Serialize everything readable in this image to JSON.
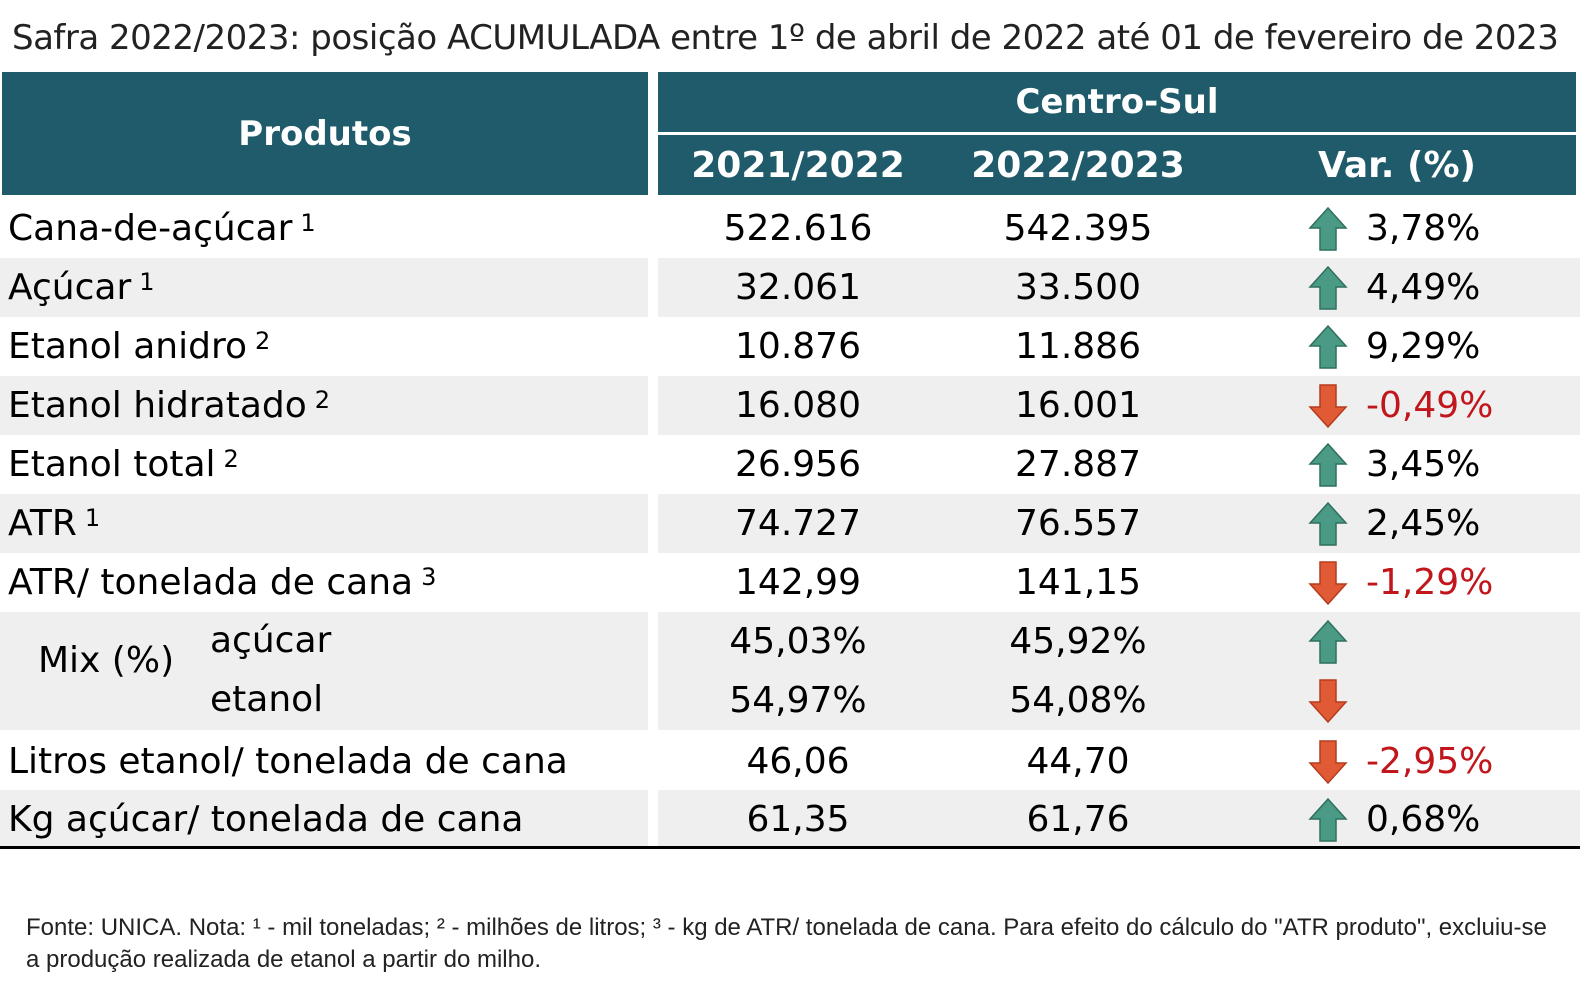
{
  "title": "Safra 2022/2023: posição ACUMULADA entre 1º de abril de 2022 até 01 de fevereiro de 2023",
  "header": {
    "produtos": "Produtos",
    "region": "Centro-Sul",
    "col1": "2021/2022",
    "col2": "2022/2023",
    "col3": "Var. (%)"
  },
  "rows": [
    {
      "label": "Cana-de-açúcar",
      "sup": "1",
      "v1": "522.616",
      "v2": "542.395",
      "trend": "up",
      "var": "3,78%"
    },
    {
      "label": "Açúcar",
      "sup": "1",
      "v1": "32.061",
      "v2": "33.500",
      "trend": "up",
      "var": "4,49%"
    },
    {
      "label": "Etanol anidro",
      "sup": "2",
      "v1": "10.876",
      "v2": "11.886",
      "trend": "up",
      "var": "9,29%"
    },
    {
      "label": "Etanol hidratado",
      "sup": "2",
      "v1": "16.080",
      "v2": "16.001",
      "trend": "down",
      "var": "-0,49%"
    },
    {
      "label": "Etanol total",
      "sup": "2",
      "v1": "26.956",
      "v2": "27.887",
      "trend": "up",
      "var": "3,45%"
    },
    {
      "label": "ATR",
      "sup": "1",
      "v1": "74.727",
      "v2": "76.557",
      "trend": "up",
      "var": "2,45%"
    },
    {
      "label": "ATR/ tonelada de cana",
      "sup": "3",
      "v1": "142,99",
      "v2": "141,15",
      "trend": "down",
      "var": "-1,29%"
    }
  ],
  "mix": {
    "label": "Mix (%)",
    "acucar": {
      "label": "açúcar",
      "v1": "45,03%",
      "v2": "45,92%",
      "trend": "up"
    },
    "etanol": {
      "label": "etanol",
      "v1": "54,97%",
      "v2": "54,08%",
      "trend": "down"
    }
  },
  "rows2": [
    {
      "label": "Litros etanol/ tonelada de cana",
      "v1": "46,06",
      "v2": "44,70",
      "trend": "down",
      "var": "-2,95%"
    },
    {
      "label": "Kg açúcar/ tonelada de cana",
      "v1": "61,35",
      "v2": "61,76",
      "trend": "up",
      "var": "0,68%"
    }
  ],
  "note": "Fonte: UNICA. Nota: ¹ - mil toneladas; ² - milhões de litros; ³ - kg de ATR/ tonelada de cana. Para efeito do cálculo do \"ATR produto\", excluiu-se a produção realizada de etanol a partir do milho.",
  "colors": {
    "header_bg": "#1f5b6a",
    "up_arrow": "#4a9a86",
    "down_arrow": "#e05a36",
    "negative_text": "#c0161c",
    "row_shade": "#efefef"
  },
  "icons": {
    "up": "arrow-up-icon",
    "down": "arrow-down-icon"
  }
}
